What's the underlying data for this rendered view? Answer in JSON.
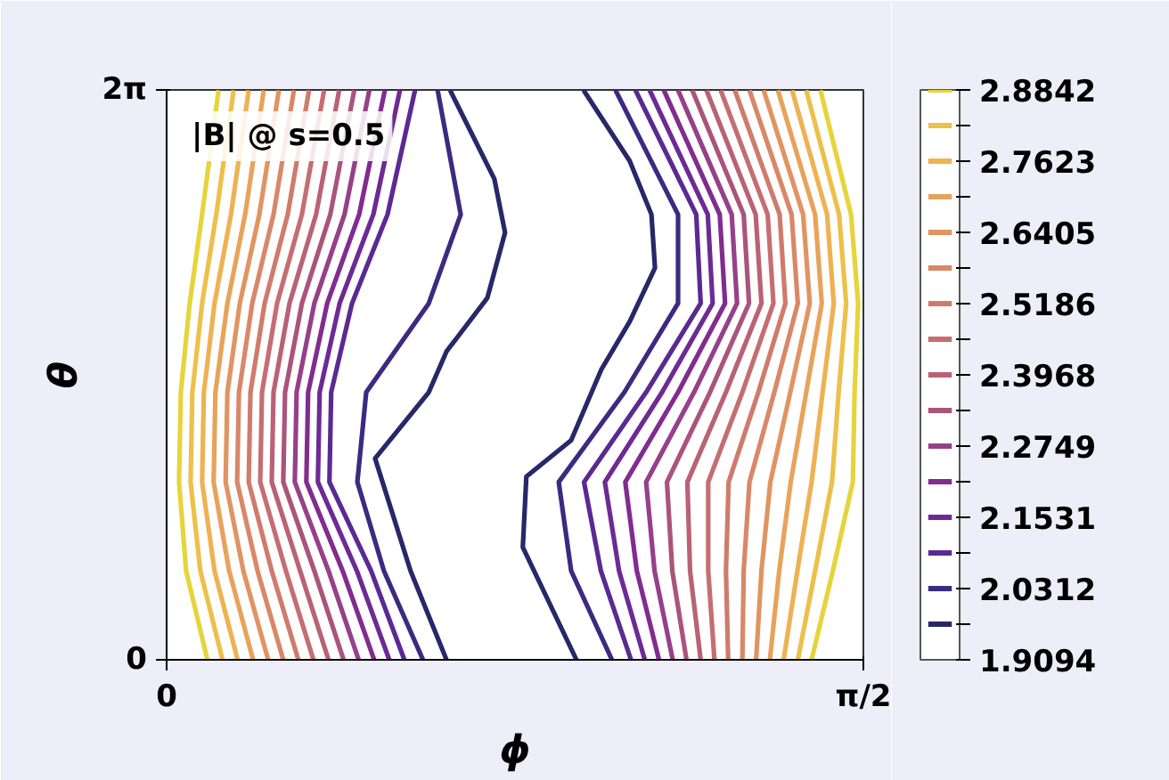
{
  "chart_data": {
    "type": "line",
    "xlabel": "ϕ",
    "ylabel": "θ",
    "annotations": [
      "|B| @ s=0.5"
    ],
    "xlim": [
      0,
      1.5708
    ],
    "ylim": [
      0,
      6.2832
    ],
    "xticks": [
      0,
      {
        "value": 1.5708,
        "label": "π/2"
      }
    ],
    "yticks": [
      0,
      {
        "value": 6.2832,
        "label": "2π"
      }
    ],
    "clim": [
      1.9094,
      2.8842
    ],
    "cticks": [
      1.9094,
      {
        "value": 1.9703,
        "label": null
      },
      2.0312,
      {
        "value": 2.0922,
        "label": null
      },
      2.1531,
      {
        "value": 2.214,
        "label": null
      },
      2.2749,
      {
        "value": 2.3359,
        "label": null
      },
      2.3968,
      {
        "value": 2.4577,
        "label": null
      },
      2.5186,
      {
        "value": 2.5796,
        "label": null
      },
      2.6405,
      {
        "value": 2.7014,
        "label": null
      },
      2.7623,
      {
        "value": 2.8233,
        "label": null
      },
      2.8842
    ],
    "marker": "none",
    "line_style": "solid",
    "series": [
      {
        "color": "#e6d43c",
        "x": [
          0.092,
          0.044,
          0.028,
          0.032,
          0.052,
          0.08,
          0.117
        ],
        "values": [
          0,
          0.98,
          1.96,
          2.95,
          3.93,
          4.91,
          6.28
        ]
      },
      {
        "color": "#ecc04a",
        "x": [
          0.126,
          0.076,
          0.054,
          0.058,
          0.08,
          0.112,
          0.151
        ],
        "values": [
          0,
          0.98,
          1.96,
          2.95,
          3.93,
          4.91,
          6.28
        ]
      },
      {
        "color": "#eeb252",
        "x": [
          0.16,
          0.108,
          0.08,
          0.084,
          0.108,
          0.145,
          0.185
        ],
        "values": [
          0,
          0.98,
          1.96,
          2.95,
          3.93,
          4.91,
          6.28
        ]
      },
      {
        "color": "#e8a35a",
        "x": [
          0.195,
          0.141,
          0.106,
          0.11,
          0.137,
          0.177,
          0.219
        ],
        "values": [
          0,
          0.98,
          1.96,
          2.95,
          3.93,
          4.91,
          6.28
        ]
      },
      {
        "color": "#e09462",
        "x": [
          0.229,
          0.173,
          0.133,
          0.137,
          0.165,
          0.209,
          0.253
        ],
        "values": [
          0,
          0.98,
          1.96,
          2.95,
          3.93,
          4.91,
          6.28
        ]
      },
      {
        "color": "#d88868",
        "x": [
          0.263,
          0.205,
          0.159,
          0.163,
          0.193,
          0.241,
          0.287
        ],
        "values": [
          0,
          0.98,
          1.96,
          2.95,
          3.93,
          4.91,
          6.28
        ]
      },
      {
        "color": "#cf7b6c",
        "x": [
          0.297,
          0.237,
          0.185,
          0.189,
          0.221,
          0.273,
          0.321
        ],
        "values": [
          0,
          0.98,
          1.96,
          2.95,
          3.93,
          4.91,
          6.28
        ]
      },
      {
        "color": "#c56e72",
        "x": [
          0.331,
          0.269,
          0.211,
          0.215,
          0.249,
          0.305,
          0.355
        ],
        "values": [
          0,
          0.98,
          1.96,
          2.95,
          3.93,
          4.91,
          6.28
        ]
      },
      {
        "color": "#b96276",
        "x": [
          0.365,
          0.301,
          0.237,
          0.241,
          0.277,
          0.337,
          0.389
        ],
        "values": [
          0,
          0.98,
          1.96,
          2.95,
          3.93,
          4.91,
          6.28
        ]
      },
      {
        "color": "#aa547c",
        "x": [
          0.399,
          0.333,
          0.263,
          0.267,
          0.305,
          0.369,
          0.423
        ],
        "values": [
          0,
          0.98,
          1.96,
          2.95,
          3.93,
          4.91,
          6.28
        ]
      },
      {
        "color": "#96408a",
        "x": [
          0.433,
          0.365,
          0.289,
          0.293,
          0.333,
          0.401,
          0.457
        ],
        "values": [
          0,
          0.98,
          1.96,
          2.95,
          3.93,
          4.91,
          6.28
        ]
      },
      {
        "color": "#812c8e",
        "x": [
          0.468,
          0.397,
          0.315,
          0.319,
          0.362,
          0.434,
          0.492
        ],
        "values": [
          0,
          0.98,
          1.96,
          2.95,
          3.93,
          4.91,
          6.28
        ]
      },
      {
        "color": "#6d2a94",
        "x": [
          0.502,
          0.429,
          0.341,
          0.345,
          0.39,
          0.466,
          0.526
        ],
        "values": [
          0,
          0.98,
          1.96,
          2.95,
          3.93,
          4.91,
          6.28
        ]
      },
      {
        "color": "#5a2a92",
        "x": [
          0.536,
          0.461,
          0.367,
          0.371,
          0.418,
          0.498,
          0.56
        ],
        "values": [
          0,
          0.98,
          1.96,
          2.95,
          3.93,
          4.91,
          6.28
        ]
      },
      {
        "color": "#3c2a80",
        "x": [
          0.578,
          0.49,
          0.43,
          0.45,
          0.591,
          0.663,
          0.611
        ],
        "values": [
          0,
          0.98,
          1.96,
          2.95,
          3.93,
          4.91,
          6.28
        ]
      },
      {
        "color": "#262868",
        "x": [
          0.631,
          0.55,
          0.47,
          0.591,
          0.631,
          0.723,
          0.763,
          0.739,
          0.639
        ],
        "values": [
          0,
          0.98,
          2.22,
          2.95,
          3.4,
          3.99,
          4.71,
          5.3,
          6.28
        ]
      },
      {
        "color": "#e6d43c",
        "x": [
          1.454,
          1.502,
          1.547,
          1.551,
          1.559,
          1.543,
          1.474
        ],
        "values": [
          0,
          0.98,
          1.96,
          2.95,
          3.93,
          4.91,
          6.28
        ]
      },
      {
        "color": "#ecc04a",
        "x": [
          1.423,
          1.462,
          1.5,
          1.515,
          1.532,
          1.516,
          1.442
        ],
        "values": [
          0,
          0.98,
          1.96,
          2.95,
          3.93,
          4.91,
          6.28
        ]
      },
      {
        "color": "#eeb252",
        "x": [
          1.391,
          1.422,
          1.454,
          1.479,
          1.504,
          1.489,
          1.41
        ],
        "values": [
          0,
          0.98,
          1.96,
          2.95,
          3.93,
          4.91,
          6.28
        ]
      },
      {
        "color": "#e8a35a",
        "x": [
          1.36,
          1.381,
          1.407,
          1.442,
          1.477,
          1.462,
          1.378
        ],
        "values": [
          0,
          0.98,
          1.96,
          2.95,
          3.93,
          4.91,
          6.28
        ]
      },
      {
        "color": "#e09462",
        "x": [
          1.329,
          1.341,
          1.361,
          1.406,
          1.45,
          1.435,
          1.346
        ],
        "values": [
          0,
          0.98,
          1.96,
          2.95,
          3.93,
          4.91,
          6.28
        ]
      },
      {
        "color": "#d88868",
        "x": [
          1.298,
          1.301,
          1.314,
          1.37,
          1.423,
          1.409,
          1.314
        ],
        "values": [
          0,
          0.98,
          1.96,
          2.95,
          3.93,
          4.91,
          6.28
        ]
      },
      {
        "color": "#cf7b6c",
        "x": [
          1.266,
          1.261,
          1.267,
          1.334,
          1.395,
          1.382,
          1.281
        ],
        "values": [
          0,
          0.98,
          1.96,
          2.95,
          3.93,
          4.91,
          6.28
        ]
      },
      {
        "color": "#c56e72",
        "x": [
          1.235,
          1.221,
          1.221,
          1.298,
          1.368,
          1.355,
          1.249
        ],
        "values": [
          0,
          0.98,
          1.96,
          2.95,
          3.93,
          4.91,
          6.28
        ]
      },
      {
        "color": "#b96276",
        "x": [
          1.204,
          1.18,
          1.174,
          1.261,
          1.341,
          1.328,
          1.217
        ],
        "values": [
          0,
          0.98,
          1.96,
          2.95,
          3.93,
          4.91,
          6.28
        ]
      },
      {
        "color": "#aa547c",
        "x": [
          1.172,
          1.14,
          1.128,
          1.225,
          1.313,
          1.301,
          1.185
        ],
        "values": [
          0,
          0.98,
          1.96,
          2.95,
          3.93,
          4.91,
          6.28
        ]
      },
      {
        "color": "#96408a",
        "x": [
          1.141,
          1.1,
          1.081,
          1.189,
          1.286,
          1.274,
          1.153
        ],
        "values": [
          0,
          0.98,
          1.96,
          2.95,
          3.93,
          4.91,
          6.28
        ]
      },
      {
        "color": "#812c8e",
        "x": [
          1.11,
          1.06,
          1.034,
          1.153,
          1.259,
          1.247,
          1.121
        ],
        "values": [
          0,
          0.98,
          1.96,
          2.95,
          3.93,
          4.91,
          6.28
        ]
      },
      {
        "color": "#6d2a94",
        "x": [
          1.078,
          1.02,
          0.988,
          1.117,
          1.231,
          1.22,
          1.089
        ],
        "values": [
          0,
          0.98,
          1.96,
          2.95,
          3.93,
          4.91,
          6.28
        ]
      },
      {
        "color": "#5a2a92",
        "x": [
          1.047,
          0.979,
          0.941,
          1.081,
          1.204,
          1.194,
          1.057
        ],
        "values": [
          0,
          0.98,
          1.96,
          2.95,
          3.93,
          4.91,
          6.28
        ]
      },
      {
        "color": "#3c2a80",
        "x": [
          1.004,
          0.912,
          0.884,
          1.032,
          1.153,
          1.153,
          1.012
        ],
        "values": [
          0,
          0.98,
          1.96,
          2.95,
          3.93,
          4.91,
          6.28
        ]
      },
      {
        "color": "#262868",
        "x": [
          0.924,
          0.803,
          0.811,
          0.912,
          0.98,
          1.044,
          1.101,
          1.093,
          1.044,
          0.94
        ],
        "values": [
          0,
          1.24,
          2.02,
          2.42,
          3.2,
          3.73,
          4.32,
          4.91,
          5.5,
          6.28
        ]
      }
    ]
  }
}
